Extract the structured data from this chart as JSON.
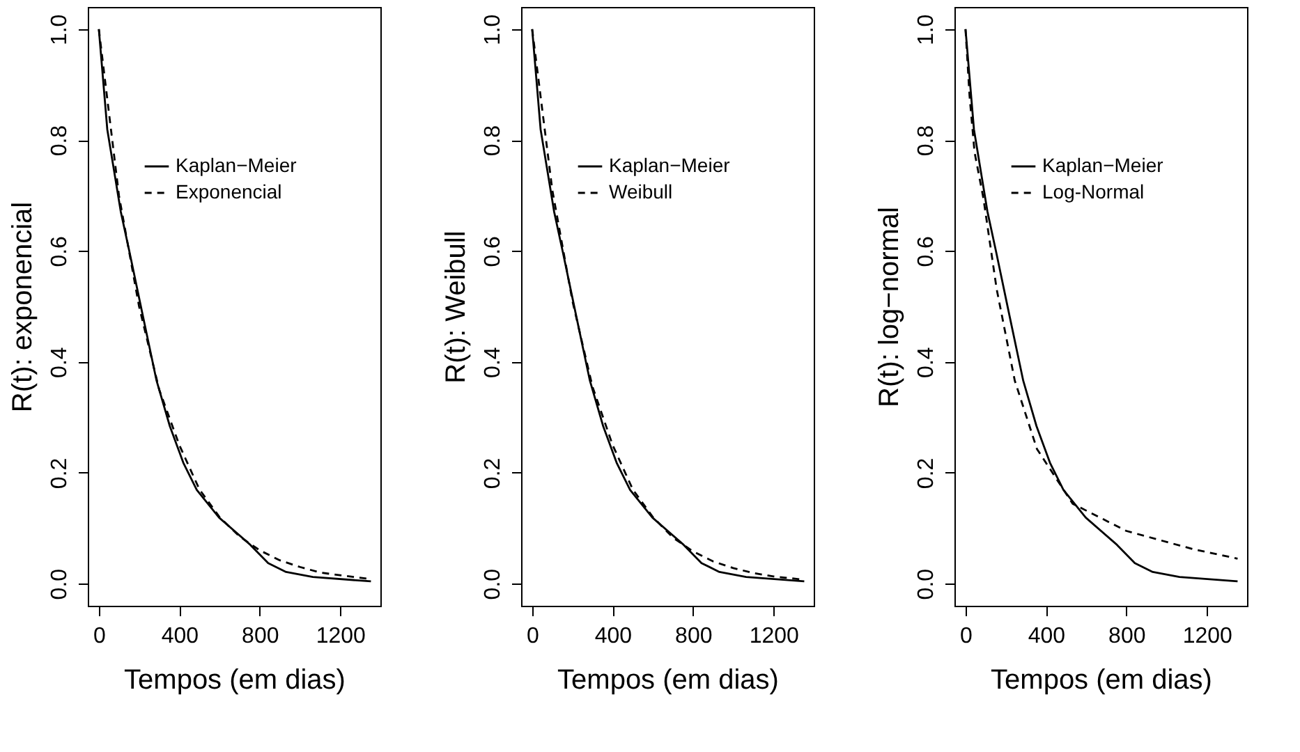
{
  "chart_data": [
    {
      "type": "line",
      "xlabel": "Tempos (em dias)",
      "ylabel": "R(t): exponencial",
      "xlim": [
        -55,
        1400
      ],
      "ylim": [
        -0.04,
        1.04
      ],
      "xticks": [
        0,
        400,
        800,
        1200
      ],
      "yticks": [
        {
          "value": 0,
          "label": "0.0"
        },
        {
          "value": 0.2,
          "label": "0.2"
        },
        {
          "value": 0.4,
          "label": "0.4"
        },
        {
          "value": 0.6,
          "label": "0.6"
        },
        {
          "value": 0.8,
          "label": "0.8"
        },
        {
          "value": 1,
          "label": "1.0"
        }
      ],
      "legend": "top right",
      "series": [
        {
          "name": "Kaplan−Meier",
          "color": "#000000",
          "line_style": "solid",
          "x": [
            0,
            42,
            109,
            153,
            220,
            287,
            353,
            420,
            487,
            598,
            753,
            842,
            931,
            1064,
            1353
          ],
          "values": [
            1.0,
            0.819,
            0.671,
            0.597,
            0.481,
            0.366,
            0.284,
            0.218,
            0.169,
            0.119,
            0.07,
            0.037,
            0.021,
            0.012,
            0.004
          ]
        },
        {
          "name": "Exponencial",
          "color": "#000000",
          "line_style": "dashed",
          "x": [
            0,
            100,
            200,
            300,
            400,
            500,
            600,
            700,
            800,
            900,
            1000,
            1100,
            1200,
            1353
          ],
          "values": [
            1.0,
            0.7,
            0.5,
            0.35,
            0.25,
            0.17,
            0.12,
            0.085,
            0.06,
            0.042,
            0.03,
            0.02,
            0.015,
            0.008
          ]
        }
      ]
    },
    {
      "type": "line",
      "xlabel": "Tempos (em dias)",
      "ylabel": "R(t): Weibull",
      "xlim": [
        -55,
        1400
      ],
      "ylim": [
        -0.04,
        1.04
      ],
      "xticks": [
        0,
        400,
        800,
        1200
      ],
      "yticks": [
        {
          "value": 0,
          "label": "0.0"
        },
        {
          "value": 0.2,
          "label": "0.2"
        },
        {
          "value": 0.4,
          "label": "0.4"
        },
        {
          "value": 0.6,
          "label": "0.6"
        },
        {
          "value": 0.8,
          "label": "0.8"
        },
        {
          "value": 1,
          "label": "1.0"
        }
      ],
      "legend": "top right",
      "series": [
        {
          "name": "Kaplan−Meier",
          "color": "#000000",
          "line_style": "solid",
          "x": [
            0,
            42,
            109,
            153,
            220,
            287,
            353,
            420,
            487,
            598,
            753,
            842,
            931,
            1064,
            1353
          ],
          "values": [
            1.0,
            0.819,
            0.671,
            0.597,
            0.481,
            0.366,
            0.284,
            0.218,
            0.169,
            0.119,
            0.07,
            0.037,
            0.021,
            0.012,
            0.004
          ]
        },
        {
          "name": "Weibull",
          "color": "#000000",
          "line_style": "dashed",
          "x": [
            0,
            100,
            200,
            300,
            400,
            500,
            600,
            700,
            800,
            900,
            1000,
            1100,
            1200,
            1353
          ],
          "values": [
            1.0,
            0.71,
            0.51,
            0.355,
            0.25,
            0.17,
            0.12,
            0.083,
            0.058,
            0.04,
            0.028,
            0.019,
            0.013,
            0.007
          ]
        }
      ]
    },
    {
      "type": "line",
      "xlabel": "Tempos (em dias)",
      "ylabel": "R(t): log−normal",
      "xlim": [
        -55,
        1400
      ],
      "ylim": [
        -0.04,
        1.04
      ],
      "xticks": [
        0,
        400,
        800,
        1200
      ],
      "yticks": [
        {
          "value": 0,
          "label": "0.0"
        },
        {
          "value": 0.2,
          "label": "0.2"
        },
        {
          "value": 0.4,
          "label": "0.4"
        },
        {
          "value": 0.6,
          "label": "0.6"
        },
        {
          "value": 0.8,
          "label": "0.8"
        },
        {
          "value": 1,
          "label": "1.0"
        }
      ],
      "legend": "top right",
      "series": [
        {
          "name": "Kaplan−Meier",
          "color": "#000000",
          "line_style": "solid",
          "x": [
            0,
            42,
            109,
            153,
            220,
            287,
            353,
            420,
            487,
            598,
            753,
            842,
            931,
            1064,
            1353
          ],
          "values": [
            1.0,
            0.819,
            0.671,
            0.597,
            0.481,
            0.366,
            0.284,
            0.218,
            0.169,
            0.119,
            0.07,
            0.037,
            0.021,
            0.012,
            0.004
          ]
        },
        {
          "name": "Log-Normal",
          "color": "#000000",
          "line_style": "dashed",
          "x": [
            0,
            20,
            45,
            89,
            155,
            245,
            355,
            533,
            800,
            1133,
            1353
          ],
          "values": [
            1.0,
            0.88,
            0.778,
            0.695,
            0.531,
            0.366,
            0.243,
            0.144,
            0.095,
            0.062,
            0.045
          ]
        }
      ]
    }
  ]
}
